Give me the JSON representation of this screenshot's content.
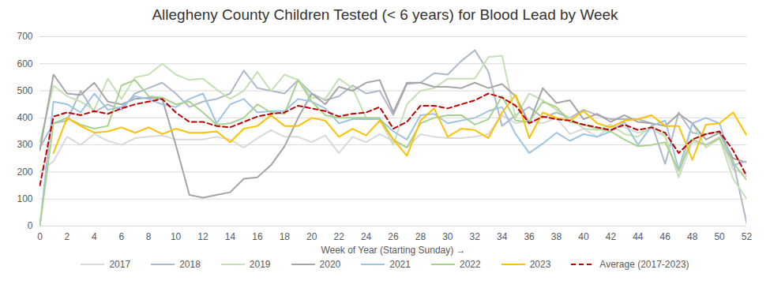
{
  "chart_data": {
    "type": "line",
    "title": "Allegheny County Children Tested (< 6 years) for Blood Lead by Week",
    "x_label": "Week of Year (Starting Sunday)",
    "x": [
      0,
      1,
      2,
      3,
      4,
      5,
      6,
      7,
      8,
      9,
      10,
      11,
      12,
      13,
      14,
      15,
      16,
      17,
      18,
      19,
      20,
      21,
      22,
      23,
      24,
      25,
      26,
      27,
      28,
      29,
      30,
      31,
      32,
      33,
      34,
      35,
      36,
      37,
      38,
      39,
      40,
      41,
      42,
      43,
      44,
      45,
      46,
      47,
      48,
      49,
      50,
      51,
      52
    ],
    "xlim": [
      0,
      52
    ],
    "xticks": [
      0,
      2,
      4,
      6,
      8,
      10,
      12,
      14,
      16,
      18,
      20,
      22,
      24,
      26,
      28,
      30,
      32,
      34,
      36,
      38,
      40,
      42,
      44,
      46,
      48,
      50,
      52
    ],
    "ylim": [
      0,
      700
    ],
    "yticks": [
      0,
      100,
      200,
      300,
      400,
      500,
      600,
      700
    ],
    "grid": true,
    "legend": "bottom",
    "series": [
      {
        "name": "2017",
        "color": "#d9d9d9",
        "line_style": "solid",
        "values": [
          200,
          240,
          330,
          300,
          340,
          315,
          300,
          325,
          330,
          335,
          320,
          320,
          320,
          330,
          320,
          290,
          325,
          355,
          330,
          330,
          310,
          335,
          270,
          330,
          310,
          340,
          315,
          290,
          340,
          330,
          325,
          325,
          330,
          340,
          410,
          380,
          390,
          380,
          400,
          340,
          360,
          330,
          370,
          365,
          345,
          360,
          330,
          180,
          310,
          300,
          330,
          210,
          190
        ]
      },
      {
        "name": "2018",
        "color": "#adb9ca",
        "line_style": "solid",
        "values": [
          290,
          380,
          390,
          500,
          420,
          450,
          430,
          490,
          510,
          530,
          490,
          440,
          460,
          470,
          490,
          575,
          510,
          500,
          490,
          540,
          490,
          465,
          480,
          520,
          490,
          500,
          410,
          525,
          530,
          565,
          560,
          610,
          650,
          570,
          370,
          410,
          440,
          400,
          420,
          400,
          430,
          410,
          395,
          395,
          395,
          380,
          230,
          420,
          345,
          340,
          350,
          240,
          10
        ]
      },
      {
        "name": "2019",
        "color": "#c5e0b4",
        "line_style": "solid",
        "values": [
          310,
          520,
          480,
          460,
          430,
          545,
          470,
          550,
          560,
          600,
          560,
          540,
          545,
          505,
          470,
          500,
          570,
          500,
          560,
          540,
          475,
          470,
          545,
          510,
          400,
          395,
          300,
          450,
          500,
          510,
          545,
          545,
          545,
          625,
          630,
          400,
          490,
          465,
          430,
          400,
          360,
          355,
          375,
          340,
          330,
          370,
          335,
          180,
          380,
          290,
          325,
          175,
          100
        ]
      },
      {
        "name": "2020",
        "color": "#a5a5a5",
        "line_style": "solid",
        "values": [
          280,
          560,
          490,
          485,
          530,
          460,
          450,
          470,
          475,
          470,
          300,
          115,
          105,
          115,
          125,
          175,
          180,
          225,
          295,
          400,
          490,
          450,
          515,
          500,
          530,
          540,
          420,
          530,
          530,
          515,
          515,
          510,
          530,
          510,
          525,
          480,
          380,
          510,
          455,
          465,
          395,
          415,
          385,
          410,
          385,
          380,
          370,
          415,
          380,
          320,
          345,
          250,
          235
        ]
      },
      {
        "name": "2021",
        "color": "#9dc3e6",
        "line_style": "solid",
        "values": [
          0,
          460,
          450,
          420,
          490,
          430,
          440,
          480,
          470,
          450,
          440,
          470,
          490,
          380,
          450,
          470,
          420,
          425,
          425,
          470,
          460,
          435,
          380,
          395,
          395,
          395,
          350,
          320,
          410,
          415,
          380,
          390,
          400,
          425,
          440,
          340,
          270,
          305,
          345,
          315,
          340,
          330,
          350,
          385,
          300,
          370,
          390,
          210,
          380,
          400,
          380,
          225,
          240
        ]
      },
      {
        "name": "2022",
        "color": "#a9d18e",
        "line_style": "solid",
        "values": [
          0,
          380,
          400,
          375,
          360,
          370,
          520,
          540,
          480,
          475,
          450,
          460,
          420,
          375,
          380,
          400,
          450,
          420,
          415,
          540,
          460,
          410,
          400,
          400,
          400,
          400,
          320,
          290,
          380,
          400,
          410,
          410,
          375,
          395,
          480,
          390,
          385,
          460,
          440,
          385,
          375,
          360,
          350,
          320,
          295,
          300,
          310,
          205,
          320,
          300,
          325,
          235,
          170
        ]
      },
      {
        "name": "2023",
        "color": "#ffc000",
        "line_style": "solid",
        "values": [
          null,
          270,
          400,
          370,
          345,
          350,
          365,
          345,
          365,
          340,
          360,
          345,
          345,
          350,
          310,
          360,
          370,
          410,
          370,
          370,
          400,
          390,
          330,
          360,
          335,
          390,
          320,
          260,
          390,
          435,
          330,
          360,
          355,
          325,
          420,
          485,
          325,
          420,
          400,
          390,
          425,
          380,
          365,
          390,
          395,
          410,
          370,
          370,
          245,
          375,
          380,
          420,
          335
        ]
      },
      {
        "name": "Average (2017-2023)",
        "color": "#c00000",
        "line_style": "dashed",
        "values": [
          150,
          405,
          420,
          410,
          425,
          415,
          435,
          450,
          460,
          470,
          420,
          385,
          385,
          370,
          365,
          385,
          405,
          415,
          420,
          445,
          435,
          425,
          405,
          415,
          420,
          440,
          360,
          385,
          445,
          445,
          435,
          450,
          465,
          490,
          475,
          445,
          380,
          405,
          395,
          390,
          375,
          365,
          355,
          375,
          355,
          365,
          345,
          270,
          320,
          340,
          350,
          280,
          185
        ]
      }
    ]
  }
}
